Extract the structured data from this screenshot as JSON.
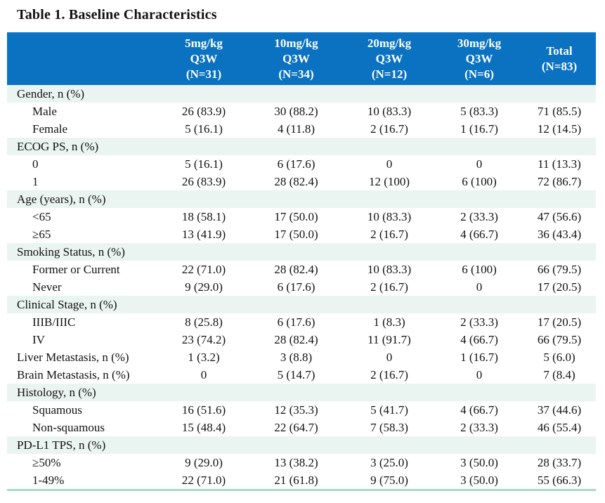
{
  "title": "Table 1. Baseline Characteristics",
  "colors": {
    "header_bg": "#0a72c0",
    "header_text": "#ffffff",
    "section_row_bg": "#eaf4f0",
    "bottom_border": "#a9d9c6",
    "body_text": "#111111"
  },
  "table": {
    "columns": [
      {
        "lines": [
          "5mg/kg",
          "Q3W",
          "(N=31)"
        ]
      },
      {
        "lines": [
          "10mg/kg",
          "Q3W",
          "(N=34)"
        ]
      },
      {
        "lines": [
          "20mg/kg",
          "Q3W",
          "(N=12)"
        ]
      },
      {
        "lines": [
          "30mg/kg",
          "Q3W",
          "(N=6)"
        ]
      },
      {
        "lines": [
          "Total",
          "(N=83)"
        ]
      }
    ],
    "rows": [
      {
        "type": "section",
        "label": "Gender, n (%)"
      },
      {
        "type": "data",
        "indent": true,
        "label": "Male",
        "values": [
          "26 (83.9)",
          "30 (88.2)",
          "10 (83.3)",
          "5 (83.3)",
          "71 (85.5)"
        ]
      },
      {
        "type": "data",
        "indent": true,
        "label": "Female",
        "values": [
          "5 (16.1)",
          "4 (11.8)",
          "2 (16.7)",
          "1 (16.7)",
          "12 (14.5)"
        ]
      },
      {
        "type": "section",
        "label": "ECOG PS, n (%)"
      },
      {
        "type": "data",
        "indent": true,
        "label": "0",
        "values": [
          "5 (16.1)",
          "6 (17.6)",
          "0",
          "0",
          "11 (13.3)"
        ]
      },
      {
        "type": "data",
        "indent": true,
        "label": "1",
        "values": [
          "26 (83.9)",
          "28 (82.4)",
          "12 (100)",
          "6 (100)",
          "72 (86.7)"
        ]
      },
      {
        "type": "section",
        "label": "Age (years), n (%)"
      },
      {
        "type": "data",
        "indent": true,
        "label": "<65",
        "values": [
          "18 (58.1)",
          "17 (50.0)",
          "10 (83.3)",
          "2 (33.3)",
          "47 (56.6)"
        ]
      },
      {
        "type": "data",
        "indent": true,
        "label": "≥65",
        "values": [
          "13 (41.9)",
          "17 (50.0)",
          "2 (16.7)",
          "4 (66.7)",
          "36 (43.4)"
        ]
      },
      {
        "type": "section",
        "label": "Smoking Status, n (%)"
      },
      {
        "type": "data",
        "indent": true,
        "label": "Former or Current",
        "values": [
          "22 (71.0)",
          "28 (82.4)",
          "10 (83.3)",
          "6 (100)",
          "66 (79.5)"
        ]
      },
      {
        "type": "data",
        "indent": true,
        "label": "Never",
        "values": [
          "9 (29.0)",
          "6 (17.6)",
          "2 (16.7)",
          "0",
          "17 (20.5)"
        ]
      },
      {
        "type": "section",
        "label": "Clinical Stage, n (%)"
      },
      {
        "type": "data",
        "indent": true,
        "label": "IIIB/IIIC",
        "values": [
          "8 (25.8)",
          "6 (17.6)",
          "1 (8.3)",
          "2 (33.3)",
          "17 (20.5)"
        ]
      },
      {
        "type": "data",
        "indent": true,
        "label": "IV",
        "values": [
          "23 (74.2)",
          "28 (82.4)",
          "11 (91.7)",
          "4 (66.7)",
          "66 (79.5)"
        ]
      },
      {
        "type": "data",
        "indent": false,
        "label": "Liver Metastasis, n (%)",
        "values": [
          "1 (3.2)",
          "3 (8.8)",
          "0",
          "1 (16.7)",
          "5 (6.0)"
        ]
      },
      {
        "type": "data",
        "indent": false,
        "label": "Brain Metastasis, n (%)",
        "values": [
          "0",
          "5 (14.7)",
          "2 (16.7)",
          "0",
          "7 (8.4)"
        ]
      },
      {
        "type": "section",
        "label": "Histology, n (%)"
      },
      {
        "type": "data",
        "indent": true,
        "label": "Squamous",
        "values": [
          "16 (51.6)",
          "12 (35.3)",
          "5 (41.7)",
          "4 (66.7)",
          "37 (44.6)"
        ]
      },
      {
        "type": "data",
        "indent": true,
        "label": "Non-squamous",
        "values": [
          "15 (48.4)",
          "22 (64.7)",
          "7 (58.3)",
          "2 (33.3)",
          "46 (55.4)"
        ]
      },
      {
        "type": "section",
        "label": "PD-L1 TPS, n (%)"
      },
      {
        "type": "data",
        "indent": true,
        "label": "≥50%",
        "values": [
          "9 (29.0)",
          "13 (38.2)",
          "3 (25.0)",
          "3 (50.0)",
          "28 (33.7)"
        ]
      },
      {
        "type": "data",
        "indent": true,
        "label": "1-49%",
        "values": [
          "22 (71.0)",
          "21 (61.8)",
          "9 (75.0)",
          "3 (50.0)",
          "55 (66.3)"
        ]
      }
    ]
  }
}
